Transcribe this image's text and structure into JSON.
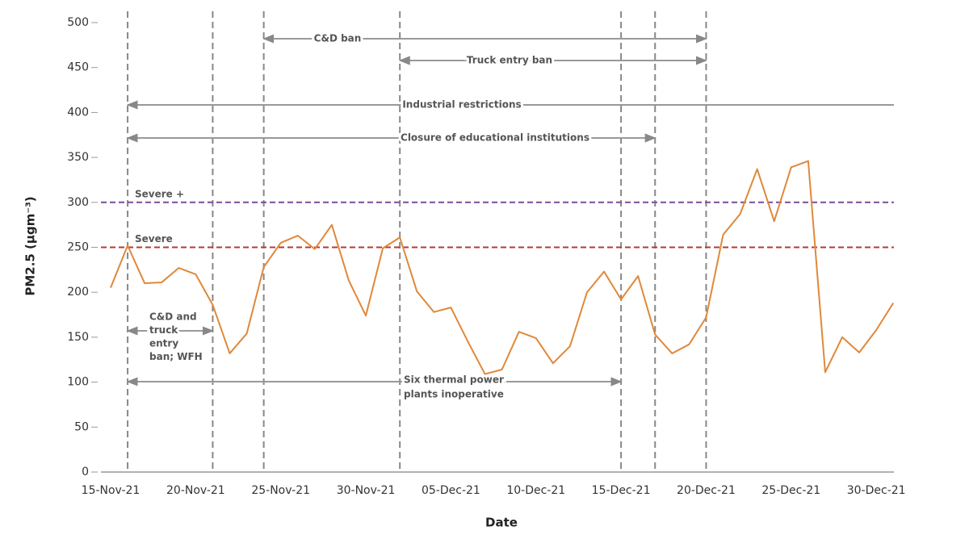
{
  "chart_data": {
    "type": "line",
    "y_label": "PM2.5 (μgm⁻³)",
    "x_label": "Date",
    "x": [
      "15-Nov-21",
      "16-Nov-21",
      "17-Nov-21",
      "18-Nov-21",
      "19-Nov-21",
      "20-Nov-21",
      "21-Nov-21",
      "22-Nov-21",
      "23-Nov-21",
      "24-Nov-21",
      "25-Nov-21",
      "26-Nov-21",
      "27-Nov-21",
      "28-Nov-21",
      "29-Nov-21",
      "30-Nov-21",
      "01-Dec-21",
      "02-Dec-21",
      "03-Dec-21",
      "04-Dec-21",
      "05-Dec-21",
      "06-Dec-21",
      "07-Dec-21",
      "08-Dec-21",
      "09-Dec-21",
      "10-Dec-21",
      "11-Dec-21",
      "12-Dec-21",
      "13-Dec-21",
      "14-Dec-21",
      "15-Dec-21",
      "16-Dec-21",
      "17-Dec-21",
      "18-Dec-21",
      "19-Dec-21",
      "20-Dec-21",
      "21-Dec-21",
      "22-Dec-21",
      "23-Dec-21",
      "24-Dec-21",
      "25-Dec-21",
      "26-Dec-21",
      "27-Dec-21",
      "28-Dec-21",
      "29-Dec-21",
      "30-Dec-21",
      "31-Dec-21"
    ],
    "series": [
      {
        "color": "#e0883a",
        "values": [
          205,
          252,
          210,
          211,
          227,
          220,
          186,
          132,
          154,
          228,
          255,
          263,
          248,
          275,
          213,
          174,
          249,
          261,
          201,
          178,
          183,
          145,
          109,
          114,
          156,
          149,
          121,
          140,
          200,
          223,
          192,
          218,
          153,
          132,
          142,
          172,
          264,
          287,
          337,
          279,
          339,
          346,
          111,
          150,
          133,
          158,
          188
        ]
      }
    ],
    "ylim": [
      0,
      500
    ],
    "yticks": [
      0,
      50,
      100,
      150,
      200,
      250,
      300,
      350,
      400,
      450,
      500
    ],
    "xticks": [
      "15-Nov-21",
      "20-Nov-21",
      "25-Nov-21",
      "30-Nov-21",
      "05-Dec-21",
      "10-Dec-21",
      "15-Dec-21",
      "20-Dec-21",
      "25-Dec-21",
      "30-Dec-21"
    ],
    "levels": [
      {
        "label": "Severe +",
        "value": 300,
        "color": "#7a4c9c"
      },
      {
        "label": "Severe",
        "value": 250,
        "color": "#b53a34"
      }
    ],
    "event_dates": [
      "16-Nov-21",
      "21-Nov-21",
      "24-Nov-21",
      "02-Dec-21",
      "15-Dec-21",
      "17-Dec-21",
      "20-Dec-21"
    ],
    "annotations": [
      {
        "text": [
          "C&D ban"
        ],
        "from": "24-Nov-21",
        "to": "20-Dec-21"
      },
      {
        "text": [
          "Truck entry ban"
        ],
        "from": "02-Dec-21",
        "to": "20-Dec-21"
      },
      {
        "text": [
          "Industrial restrictions"
        ],
        "from": "16-Nov-21"
      },
      {
        "text": [
          "Closure of educational institutions"
        ],
        "from": "16-Nov-21",
        "to": "17-Dec-21"
      },
      {
        "text": [
          "C&D and",
          "truck",
          "entry",
          "ban; WFH"
        ],
        "from": "16-Nov-21",
        "to": "21-Nov-21"
      },
      {
        "text": [
          "Six thermal power",
          "plants inoperative"
        ],
        "from": "16-Nov-21",
        "to": "15-Dec-21"
      }
    ]
  }
}
